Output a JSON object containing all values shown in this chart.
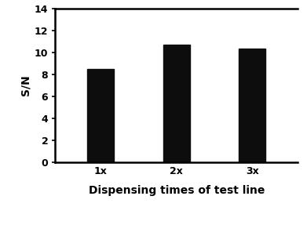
{
  "categories": [
    "1x",
    "2x",
    "3x"
  ],
  "values": [
    8.5,
    10.7,
    10.4
  ],
  "bar_color": "#0d0d0d",
  "bar_width": 0.35,
  "ylabel": "S/N",
  "xlabel": "Dispensing times of test line",
  "ylim": [
    0,
    14
  ],
  "yticks": [
    0,
    2,
    4,
    6,
    8,
    10,
    12,
    14
  ],
  "title": "",
  "background_color": "#ffffff",
  "ylabel_fontsize": 10,
  "xlabel_fontsize": 10,
  "tick_fontsize": 9,
  "spine_linewidth": 1.8
}
